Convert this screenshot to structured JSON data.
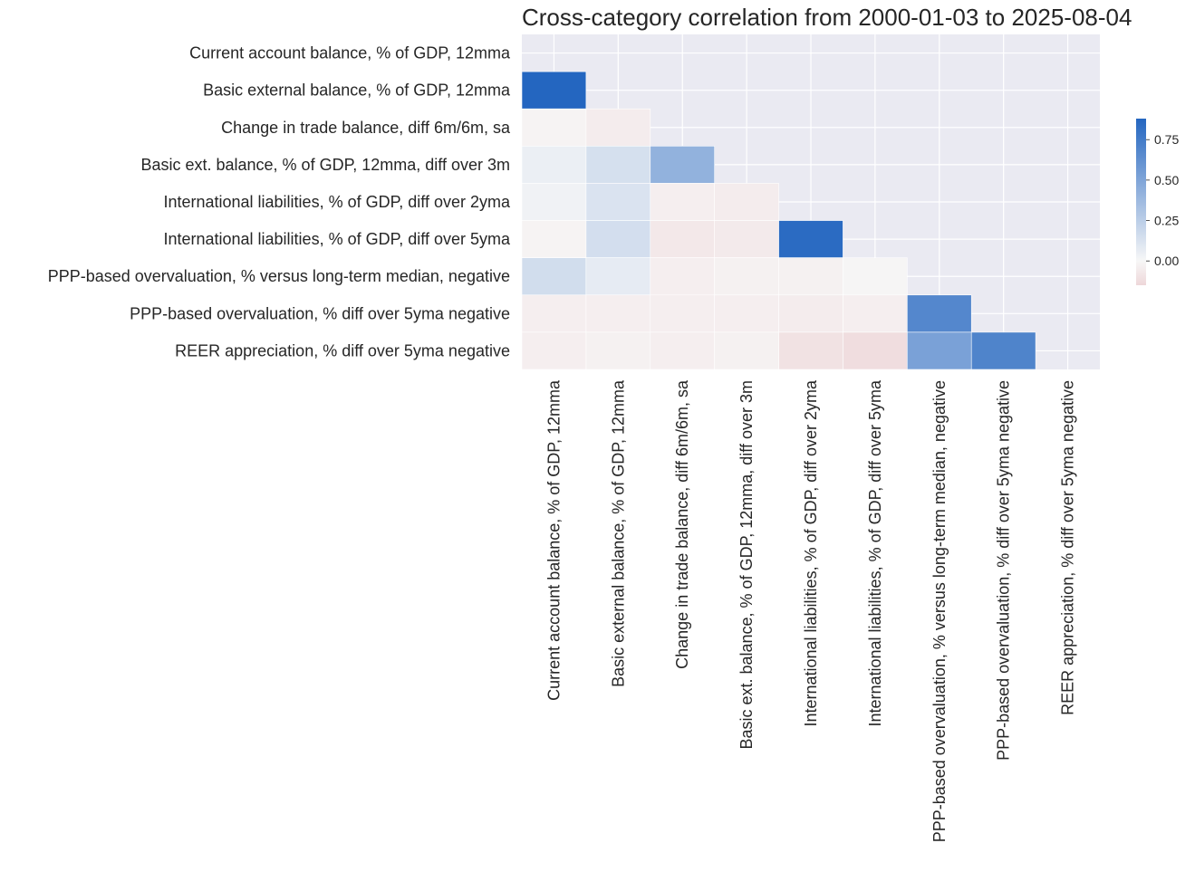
{
  "chart_data": {
    "type": "heatmap",
    "title": "Cross-category correlation from 2000-01-03 to 2025-08-04",
    "labels": [
      "Current account balance, % of GDP, 12mma",
      "Basic external balance, % of GDP, 12mma",
      "Change in trade balance, diff 6m/6m, sa",
      "Basic ext. balance, % of GDP, 12mma, diff over 3m",
      "International liabilities, % of GDP, diff over 2yma",
      "International liabilities, % of GDP, diff over 5yma",
      "PPP-based overvaluation, % versus long-term median, negative",
      "PPP-based overvaluation, % diff over 5yma negative",
      "REER appreciation, % diff over 5yma negative"
    ],
    "values": [
      [
        null,
        null,
        null,
        null,
        null,
        null,
        null,
        null,
        null
      ],
      [
        0.88,
        null,
        null,
        null,
        null,
        null,
        null,
        null,
        null
      ],
      [
        -0.02,
        -0.05,
        null,
        null,
        null,
        null,
        null,
        null,
        null
      ],
      [
        0.05,
        0.14,
        0.42,
        null,
        null,
        null,
        null,
        null,
        null
      ],
      [
        0.03,
        0.12,
        -0.04,
        -0.05,
        null,
        null,
        null,
        null,
        null
      ],
      [
        -0.02,
        0.15,
        -0.07,
        -0.06,
        0.85,
        null,
        null,
        null,
        null
      ],
      [
        0.16,
        0.07,
        -0.04,
        -0.03,
        -0.03,
        -0.01,
        null,
        null,
        null
      ],
      [
        -0.04,
        -0.04,
        -0.04,
        -0.04,
        -0.05,
        -0.04,
        0.68,
        null,
        null
      ],
      [
        -0.04,
        -0.03,
        -0.04,
        -0.03,
        -0.1,
        -0.12,
        0.52,
        0.7,
        null
      ]
    ],
    "mask": "upper-triangle-including-diagonal",
    "colorbar": {
      "min": -0.15,
      "max": 0.88,
      "ticks": [
        0.0,
        0.25,
        0.5,
        0.75
      ],
      "tick_labels": [
        "0.00",
        "0.25",
        "0.50",
        "0.75"
      ]
    },
    "colors": {
      "low": "#eed7d9",
      "center": "#f7f7f7",
      "high": "#2466c0",
      "masked_background": "#eaeaf2",
      "grid": "#ffffff"
    }
  }
}
